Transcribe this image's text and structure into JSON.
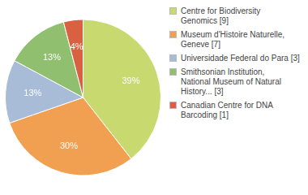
{
  "chart_data": {
    "type": "pie",
    "categories": [
      "Centre for Biodiversity\nGenomics [9]",
      "Museum d'Histoire Naturelle,\nGeneve [7]",
      "Universidade Federal do Para [3]",
      "Smithsonian Institution,\nNational Museum of Natural\nHistory... [3]",
      "Canadian Centre for DNA\nBarcoding [1]"
    ],
    "values": [
      39,
      30,
      13,
      13,
      4
    ],
    "value_labels": [
      "39%",
      "30%",
      "13%",
      "13%",
      "4%"
    ],
    "colors": [
      "#c8d96f",
      "#f0a050",
      "#a8bcd8",
      "#8fbf6f",
      "#d96040"
    ],
    "data_labels": true,
    "legend": "right"
  }
}
